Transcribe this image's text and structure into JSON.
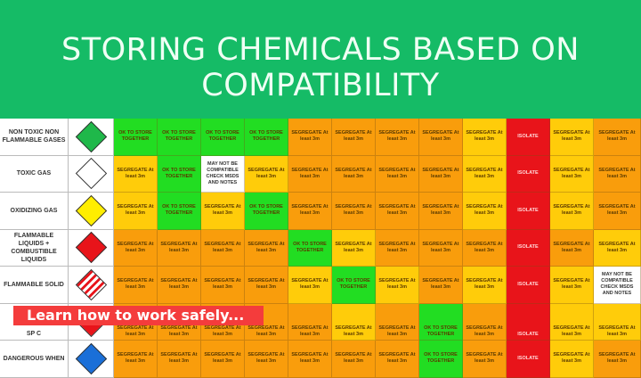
{
  "header": {
    "title_line1": "STORING CHEMICALS BASED ON",
    "title_line2": "COMPATIBILITY"
  },
  "banner": {
    "label": "Learn how to work safely..."
  },
  "colors": {
    "G": "#22dd22",
    "O": "#f99d0c",
    "Y": "#ffcc0a",
    "R": "#e8141a",
    "W": "#ffffff",
    "header": "#15bb66",
    "banner": "#f43c3c"
  },
  "legend": {
    "G": "OK TO STORE TOGETHER",
    "O": "SEGREGATE At least 3m",
    "Y": "SEGREGATE At least 3m",
    "R": "ISOLATE",
    "W": "MAY NOT BE COMPATIBLE CHECK MSDS AND NOTES"
  },
  "rows": [
    {
      "label": "NON TOXIC NON FLAMMABLE GASES",
      "icon": "green-gas-diamond-icon",
      "icon_color": "#1fb84a",
      "cells": [
        "G",
        "G",
        "G",
        "G",
        "O",
        "O",
        "O",
        "O",
        "Y",
        "R",
        "Y",
        "O"
      ]
    },
    {
      "label": "TOXIC GAS",
      "icon": "toxic-gas-diamond-icon",
      "icon_color": "#ffffff",
      "cells": [
        "Y",
        "G",
        "W",
        "Y",
        "O",
        "O",
        "O",
        "O",
        "Y",
        "R",
        "Y",
        "O"
      ]
    },
    {
      "label": "OXIDIZING GAS",
      "icon": "oxidizing-gas-diamond-icon",
      "icon_color": "#ffee00",
      "cells": [
        "Y",
        "G",
        "Y",
        "G",
        "O",
        "O",
        "O",
        "O",
        "Y",
        "R",
        "Y",
        "O"
      ]
    },
    {
      "label": "FLAMMABLE LIQUIDS + COMBUSTIBLE LIQUIDS",
      "icon": "flammable-liquid-diamond-icon",
      "icon_color": "#e8141a",
      "cells": [
        "O",
        "O",
        "O",
        "O",
        "G",
        "Y",
        "O",
        "O",
        "O",
        "R",
        "O",
        "Y"
      ]
    },
    {
      "label": "FLAMMABLE SOLID",
      "icon": "flammable-solid-diamond-icon",
      "icon_color": "repeating-linear-gradient(90deg,#e8141a 0 3px,#fff 3px 6px)",
      "cells": [
        "O",
        "O",
        "O",
        "O",
        "Y",
        "G",
        "Y",
        "O",
        "Y",
        "R",
        "Y",
        "W"
      ]
    },
    {
      "label": "SP C",
      "icon": "spontaneously-combustible-diamond-icon",
      "icon_color": "linear-gradient(135deg,#fff 50%,#e8141a 50%)",
      "cells": [
        "O",
        "O",
        "O",
        "O",
        "O",
        "Y",
        "O",
        "G",
        "O",
        "R",
        "Y",
        "Y"
      ]
    },
    {
      "label": "DANGEROUS WHEN",
      "icon": "dangerous-when-wet-diamond-icon",
      "icon_color": "#1a6fd8",
      "cells": [
        "O",
        "O",
        "O",
        "O",
        "O",
        "O",
        "O",
        "G",
        "O",
        "R",
        "Y",
        "O"
      ]
    }
  ]
}
